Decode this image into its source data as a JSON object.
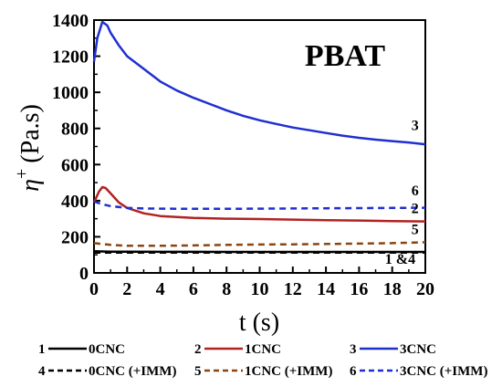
{
  "chart_data": {
    "type": "line",
    "title": "PBAT",
    "xlabel": "t (s)",
    "ylabel_symbol": "η",
    "ylabel_sup": "+",
    "ylabel_unit": "(Pa.s)",
    "xlim": [
      0,
      20
    ],
    "ylim": [
      0,
      1400
    ],
    "xticks": [
      "0",
      "2",
      "4",
      "6",
      "8",
      "10",
      "12",
      "14",
      "16",
      "18",
      "20"
    ],
    "yticks": [
      "0",
      "200",
      "400",
      "600",
      "800",
      "1000",
      "1200",
      "1400"
    ],
    "grid": false,
    "legend_position": "bottom",
    "series": [
      {
        "id": "1",
        "name": "0CNC",
        "color": "#000000",
        "dash": "solid",
        "x": [
          0,
          1,
          2,
          4,
          6,
          8,
          10,
          12,
          14,
          16,
          18,
          20
        ],
        "y": [
          120,
          118,
          118,
          117,
          117,
          116,
          116,
          116,
          116,
          116,
          116,
          116
        ]
      },
      {
        "id": "2",
        "name": "1CNC",
        "color": "#b22222",
        "dash": "solid",
        "x": [
          0,
          0.3,
          0.5,
          0.7,
          1,
          1.5,
          2,
          3,
          4,
          6,
          8,
          10,
          12,
          14,
          16,
          18,
          20
        ],
        "y": [
          390,
          450,
          475,
          470,
          440,
          390,
          360,
          330,
          315,
          305,
          300,
          298,
          295,
          292,
          290,
          287,
          285
        ]
      },
      {
        "id": "3",
        "name": "3CNC",
        "color": "#1f2fd0",
        "dash": "solid",
        "x": [
          0,
          0.2,
          0.5,
          0.8,
          1,
          1.5,
          2,
          3,
          4,
          5,
          6,
          7,
          8,
          9,
          10,
          11,
          12,
          13,
          14,
          15,
          16,
          17,
          18,
          19,
          20
        ],
        "y": [
          1170,
          1300,
          1390,
          1370,
          1330,
          1260,
          1200,
          1130,
          1060,
          1010,
          970,
          935,
          900,
          870,
          845,
          825,
          805,
          790,
          775,
          760,
          748,
          738,
          730,
          722,
          712
        ]
      },
      {
        "id": "4",
        "name": "0CNC (+IMM)",
        "color": "#000000",
        "dash": "dash",
        "x": [
          0,
          1,
          2,
          4,
          6,
          8,
          10,
          12,
          14,
          16,
          18,
          20
        ],
        "y": [
          112,
          112,
          112,
          112,
          112,
          112,
          112,
          112,
          112,
          112,
          112,
          112
        ]
      },
      {
        "id": "5",
        "name": "1CNC (+IMM)",
        "color": "#8b4513",
        "dash": "dash",
        "x": [
          0,
          0.5,
          1,
          2,
          4,
          6,
          8,
          10,
          12,
          14,
          16,
          18,
          20
        ],
        "y": [
          165,
          160,
          155,
          150,
          150,
          152,
          155,
          157,
          158,
          160,
          162,
          165,
          170
        ]
      },
      {
        "id": "6",
        "name": "3CNC (+IMM)",
        "color": "#1f2fd0",
        "dash": "dash",
        "x": [
          0,
          0.5,
          1,
          2,
          3,
          4,
          6,
          8,
          10,
          12,
          14,
          16,
          18,
          20
        ],
        "y": [
          395,
          380,
          370,
          360,
          357,
          356,
          355,
          355,
          356,
          357,
          358,
          359,
          360,
          361
        ]
      }
    ],
    "curve_labels": [
      {
        "text": "3",
        "x": 19.6,
        "y": 790
      },
      {
        "text": "6",
        "x": 19.6,
        "y": 430
      },
      {
        "text": "2",
        "x": 19.6,
        "y": 330
      },
      {
        "text": "5",
        "x": 19.6,
        "y": 215
      },
      {
        "text": "1 &4",
        "x": 19.4,
        "y": 50
      }
    ],
    "legend": [
      {
        "number": "1",
        "label": "0CNC",
        "color": "#000000",
        "dash": "solid"
      },
      {
        "number": "2",
        "label": "1CNC",
        "color": "#b22222",
        "dash": "solid"
      },
      {
        "number": "3",
        "label": "3CNC",
        "color": "#1f2fd0",
        "dash": "solid"
      },
      {
        "number": "4",
        "label": "0CNC (+IMM)",
        "color": "#000000",
        "dash": "dash"
      },
      {
        "number": "5",
        "label": "1CNC (+IMM)",
        "color": "#8b4513",
        "dash": "dash"
      },
      {
        "number": "6",
        "label": "3CNC (+IMM)",
        "color": "#1f2fd0",
        "dash": "dash"
      }
    ]
  }
}
